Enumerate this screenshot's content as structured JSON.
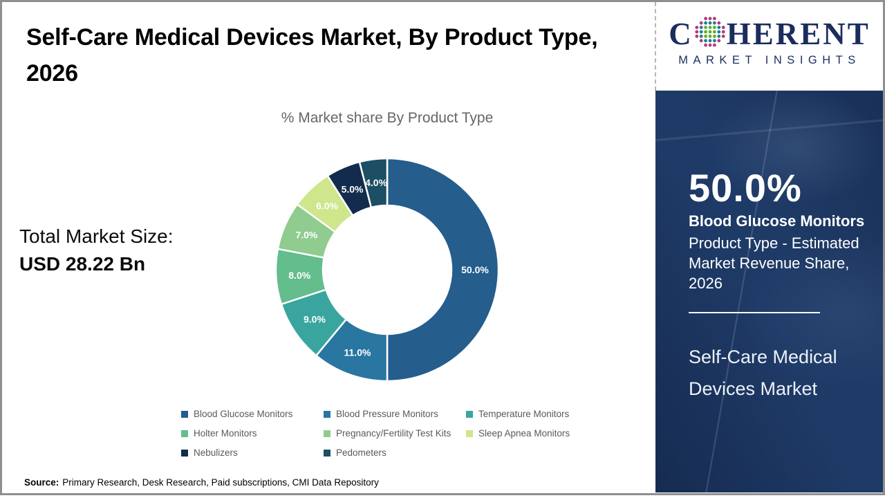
{
  "header": {
    "title": "Self-Care Medical Devices Market, By Product Type, 2026",
    "logo": {
      "brand_c": "C",
      "brand_rest": "HERENT",
      "tagline": "MARKET INSIGHTS",
      "brand_color": "#1B2D5C",
      "globe_colors": {
        "center": "#5FAF2E",
        "inner_ring": "#1F7E96",
        "outer_ring": "#B23A78"
      }
    }
  },
  "main": {
    "total_market_label": "Total Market Size:",
    "total_market_value": "USD 28.22 Bn",
    "source_label": "Source:",
    "source_text": "Primary Research, Desk Research, Paid subscriptions, CMI Data Repository"
  },
  "chart_data": {
    "type": "pie",
    "donut": true,
    "title": "% Market share By Product Type",
    "start_angle_deg": 0,
    "direction": "clockwise",
    "inner_radius_ratio": 0.578,
    "legend_position": "bottom",
    "categories": [
      "Blood Glucose Monitors",
      "Blood Pressure Monitors",
      "Temperature Monitors",
      "Holter Monitors",
      "Pregnancy/Fertility Test Kits",
      "Sleep Apnea Monitors",
      "Nebulizers",
      "Pedometers"
    ],
    "values": [
      50.0,
      11.0,
      9.0,
      8.0,
      7.0,
      6.0,
      5.0,
      4.0
    ],
    "labels": [
      "50.0%",
      "11.0%",
      "9.0%",
      "8.0%",
      "7.0%",
      "6.0%",
      "5.0%",
      "4.0%"
    ],
    "colors": [
      "#255D8C",
      "#2976A0",
      "#3AA59F",
      "#63BD8C",
      "#90CB8F",
      "#CFE68C",
      "#132C4D",
      "#1C4E64"
    ]
  },
  "side_panel": {
    "background": "#1E3A66",
    "stat_value": "50.0%",
    "stat_title": "Blood Glucose Monitors",
    "stat_description": "Product Type - Estimated Market Revenue Share, 2026",
    "market_name": "Self-Care Medical Devices Market"
  }
}
